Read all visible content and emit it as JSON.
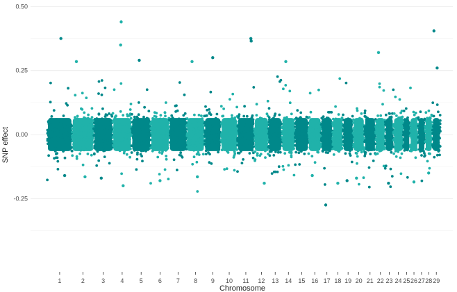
{
  "chart_data": {
    "type": "scatter",
    "title": "",
    "xlabel": "Chromosome",
    "ylabel": "SNP effect",
    "ylim": [
      -0.52,
      0.52
    ],
    "yticks": [
      -0.25,
      0.0,
      0.25,
      0.5
    ],
    "ytick_labels": [
      "-0.25",
      "0.00",
      "0.25",
      "0.50"
    ],
    "grid": true,
    "legend": "none",
    "colors": [
      "#00888a",
      "#20b2aa"
    ],
    "categories": [
      "1",
      "2",
      "3",
      "4",
      "5",
      "6",
      "7",
      "8",
      "9",
      "10",
      "11",
      "12",
      "13",
      "14",
      "15",
      "16",
      "17",
      "18",
      "19",
      "20",
      "21",
      "22",
      "23",
      "24",
      "25",
      "26",
      "27",
      "28",
      "29"
    ],
    "chromosome_sizes": [
      158,
      137,
      121,
      120,
      121,
      119,
      110,
      113,
      105,
      104,
      107,
      91,
      84,
      84,
      85,
      81,
      73,
      66,
      64,
      72,
      71,
      61,
      52,
      62,
      43,
      51,
      45,
      46,
      51
    ],
    "bulk_range": [
      -0.07,
      0.07
    ],
    "outliers": [
      {
        "chr": "1",
        "pos": 0.55,
        "y": 0.375
      },
      {
        "chr": "4",
        "pos": 0.45,
        "y": 0.44
      },
      {
        "chr": "4",
        "pos": 0.42,
        "y": 0.35
      },
      {
        "chr": "11",
        "pos": 0.8,
        "y": 0.375
      },
      {
        "chr": "11",
        "pos": 0.82,
        "y": 0.365
      },
      {
        "chr": "29",
        "pos": 0.2,
        "y": 0.405
      },
      {
        "chr": "22",
        "pos": 0.3,
        "y": 0.32
      },
      {
        "chr": "9",
        "pos": 0.5,
        "y": 0.3
      },
      {
        "chr": "5",
        "pos": 0.4,
        "y": 0.29
      },
      {
        "chr": "2",
        "pos": 0.2,
        "y": 0.285
      },
      {
        "chr": "8",
        "pos": 0.3,
        "y": 0.285
      },
      {
        "chr": "14",
        "pos": 0.3,
        "y": 0.285
      },
      {
        "chr": "29",
        "pos": 0.6,
        "y": 0.26
      },
      {
        "chr": "17",
        "pos": 0.4,
        "y": -0.275
      },
      {
        "chr": "4",
        "pos": 0.55,
        "y": -0.2
      },
      {
        "chr": "18",
        "pos": 0.5,
        "y": -0.19
      },
      {
        "chr": "12",
        "pos": 0.7,
        "y": -0.19
      },
      {
        "chr": "23",
        "pos": 0.4,
        "y": -0.19
      },
      {
        "chr": "6",
        "pos": 0.5,
        "y": -0.18
      },
      {
        "chr": "19",
        "pos": 0.4,
        "y": -0.18
      },
      {
        "chr": "26",
        "pos": 0.5,
        "y": -0.185
      },
      {
        "chr": "1",
        "pos": 0.7,
        "y": -0.16
      },
      {
        "chr": "2",
        "pos": 0.6,
        "y": -0.165
      },
      {
        "chr": "3",
        "pos": 0.4,
        "y": -0.17
      },
      {
        "chr": "20",
        "pos": 0.3,
        "y": -0.17
      },
      {
        "chr": "8",
        "pos": 0.6,
        "y": -0.165
      },
      {
        "chr": "16",
        "pos": 0.3,
        "y": -0.16
      },
      {
        "chr": "28",
        "pos": 0.5,
        "y": -0.15
      }
    ]
  }
}
